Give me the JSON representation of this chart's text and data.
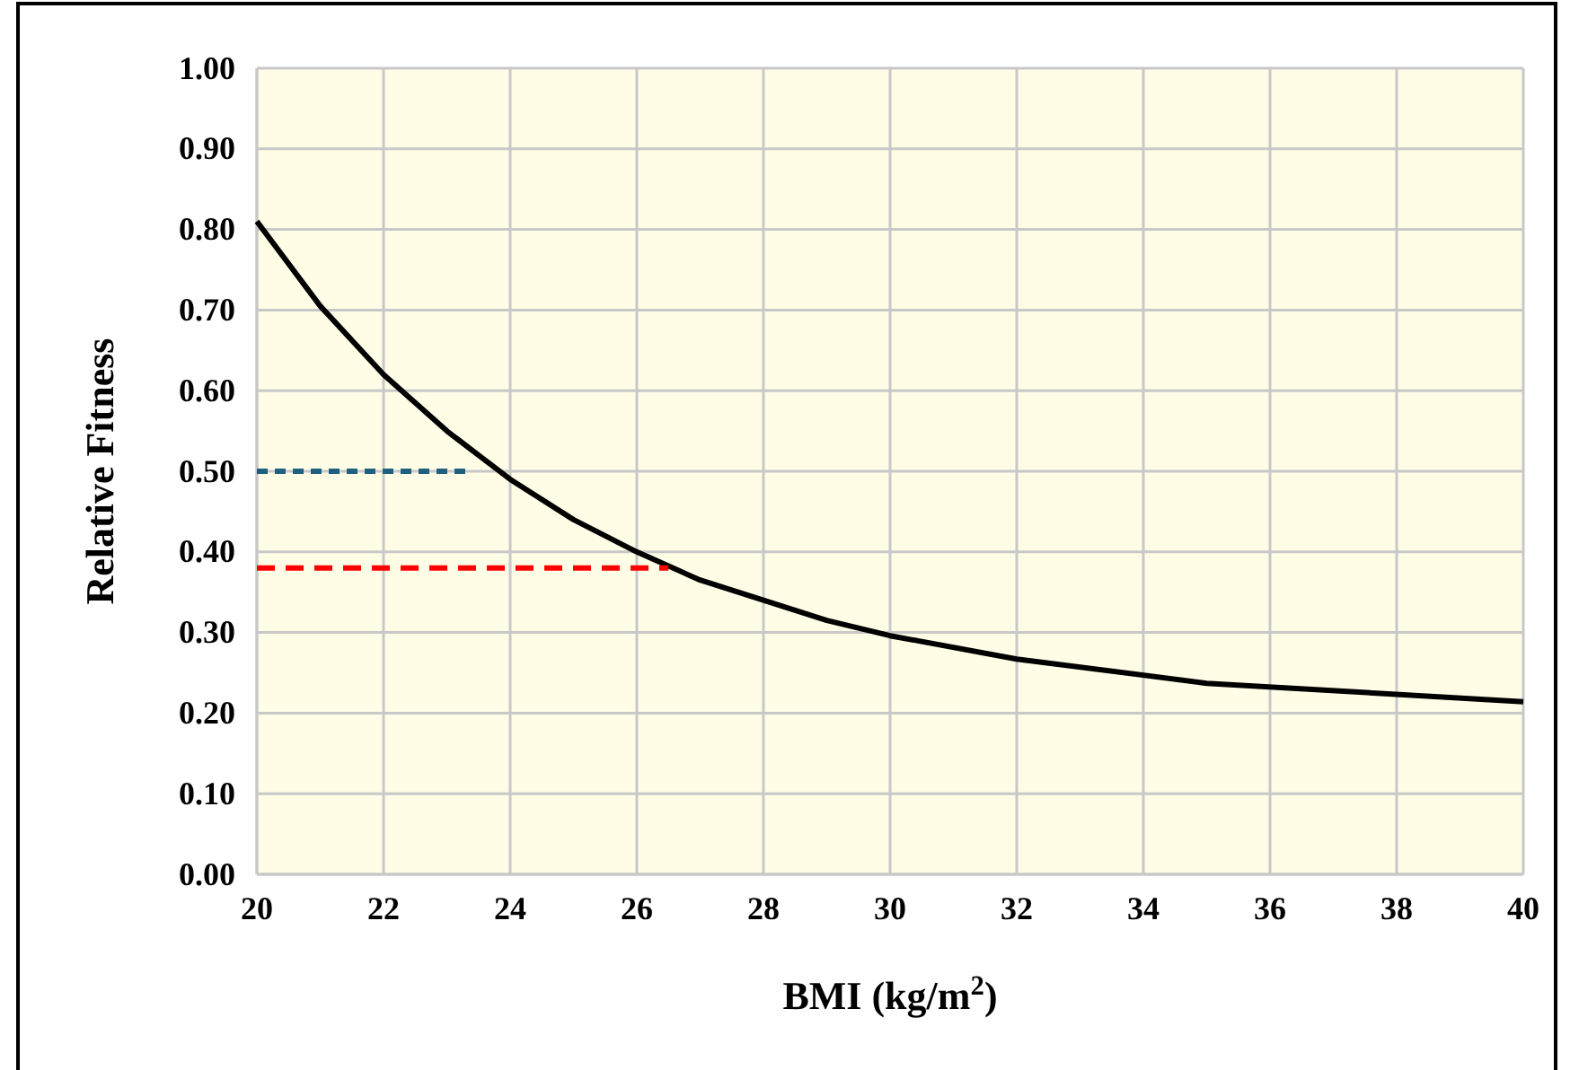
{
  "chart_data": {
    "type": "line",
    "xlabel": "BMI (kg/m$^{2}$)",
    "ylabel": "Relative Fitness",
    "xlim": [
      20,
      40
    ],
    "xticks": [
      20,
      22,
      24,
      26,
      28,
      30,
      32,
      34,
      36,
      38,
      40
    ],
    "ylim": [
      0,
      1
    ],
    "yticks": [
      {
        "value": 0,
        "label": "0.00"
      },
      {
        "value": 0.1,
        "label": "0.10"
      },
      {
        "value": 0.2,
        "label": "0.20"
      },
      {
        "value": 0.3,
        "label": "0.30"
      },
      {
        "value": 0.4,
        "label": "0.40"
      },
      {
        "value": 0.5,
        "label": "0.50"
      },
      {
        "value": 0.6,
        "label": "0.60"
      },
      {
        "value": 0.7,
        "label": "0.70"
      },
      {
        "value": 0.8,
        "label": "0.80"
      },
      {
        "value": 0.9,
        "label": "0.90"
      },
      {
        "value": 1,
        "label": "1.00"
      }
    ],
    "grid": true,
    "series": [
      {
        "color": "#000000",
        "line_style": "solid",
        "x": [
          20,
          21,
          22,
          23,
          24,
          25,
          26,
          27,
          28,
          29,
          30,
          32,
          35,
          40
        ],
        "values": [
          0.81,
          0.705,
          0.62,
          0.55,
          0.49,
          0.44,
          0.4,
          0.365,
          0.34,
          0.315,
          0.296,
          0.267,
          0.237,
          0.214
        ]
      },
      {
        "color": "#1f6080",
        "line_style": "dotted",
        "x": [
          20,
          23.4
        ],
        "values": [
          0.5,
          0.5
        ]
      },
      {
        "color": "#ff0000",
        "line_style": "dashed",
        "x": [
          20,
          26.5
        ],
        "values": [
          0.38,
          0.38
        ]
      }
    ]
  }
}
